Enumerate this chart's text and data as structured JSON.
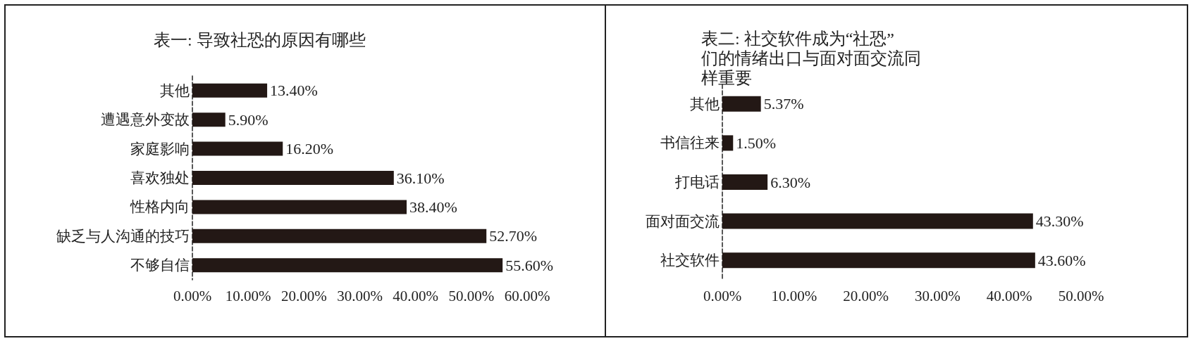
{
  "chart_data": [
    {
      "type": "bar",
      "orientation": "horizontal",
      "title": "表一: 导致社恐的原因有哪些",
      "categories": [
        "其他",
        "遭遇意外变故",
        "家庭影响",
        "喜欢独处",
        "性格内向",
        "缺乏与人沟通的技巧",
        "不够自信"
      ],
      "values": [
        13.4,
        5.9,
        16.2,
        36.1,
        38.4,
        52.7,
        55.6
      ],
      "value_labels": [
        "13.40%",
        "5.90%",
        "16.20%",
        "36.10%",
        "38.40%",
        "52.70%",
        "55.60%"
      ],
      "color": "#231815",
      "xlim": [
        0,
        60
      ],
      "xticks": [
        {
          "value": 0,
          "label": "0.00%"
        },
        {
          "value": 10,
          "label": "10.00%"
        },
        {
          "value": 20,
          "label": "20.00%"
        },
        {
          "value": 30,
          "label": "30.00%"
        },
        {
          "value": 40,
          "label": "40.00%"
        },
        {
          "value": 50,
          "label": "50.00%"
        },
        {
          "value": 60,
          "label": "60.00%"
        }
      ],
      "grid": false
    },
    {
      "type": "bar",
      "orientation": "horizontal",
      "title": "表二: 社交软件成为“社恐”们的情绪出口与面对面交流同样重要",
      "categories": [
        "其他",
        "书信往来",
        "打电话",
        "面对面交流",
        "社交软件"
      ],
      "values": [
        5.37,
        1.5,
        6.3,
        43.3,
        43.6
      ],
      "value_labels": [
        "5.37%",
        "1.50%",
        "6.30%",
        "43.30%",
        "43.60%"
      ],
      "color": "#231815",
      "xlim": [
        0,
        50
      ],
      "xticks": [
        {
          "value": 0,
          "label": "0.00%"
        },
        {
          "value": 10,
          "label": "10.00%"
        },
        {
          "value": 20,
          "label": "20.00%"
        },
        {
          "value": 30,
          "label": "30.00%"
        },
        {
          "value": 40,
          "label": "40.00%"
        },
        {
          "value": 50,
          "label": "50.00%"
        }
      ],
      "grid": false
    }
  ]
}
